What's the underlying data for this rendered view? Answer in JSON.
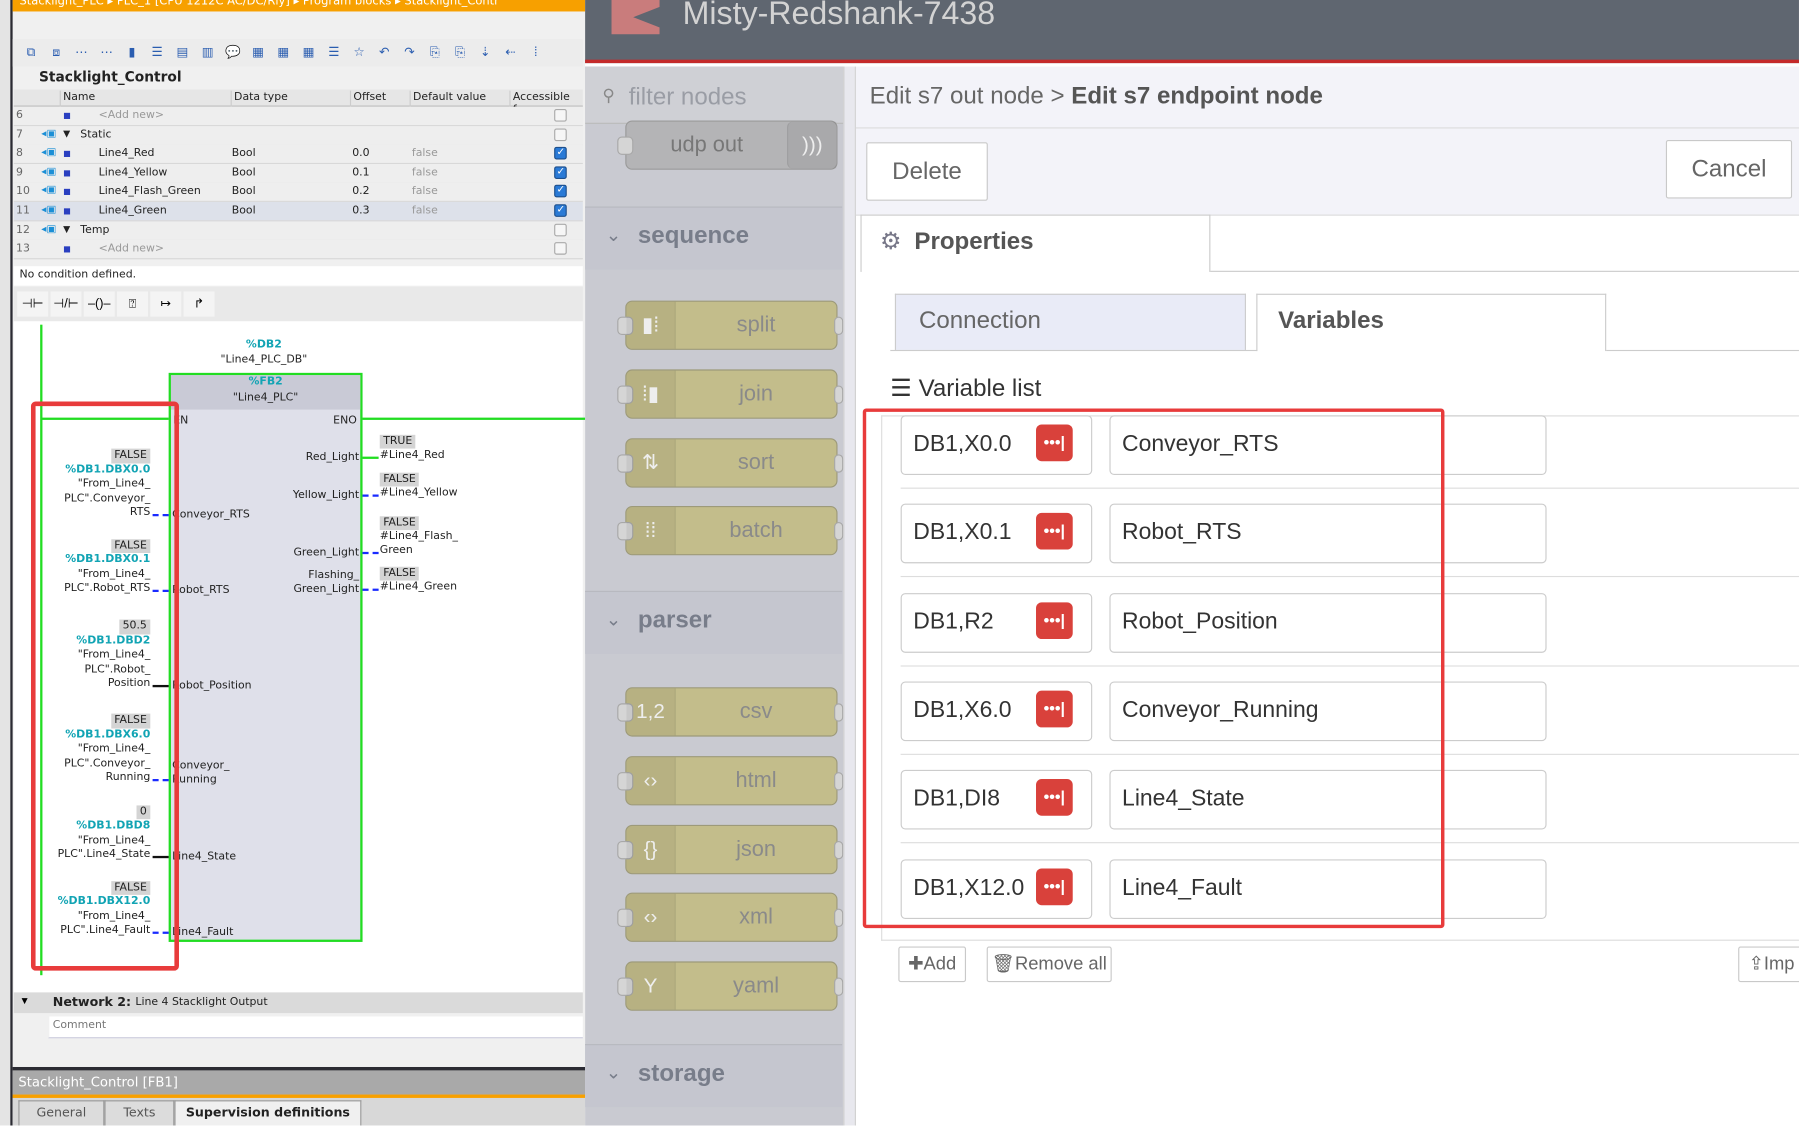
{
  "tia": {
    "breadcrumb": [
      "Stacklight_PLC",
      "PLC_1 [CPU 1212C AC/DC/Rly]",
      "Program blocks",
      "Stacklight_Contr"
    ],
    "block_title": "Stacklight_Control",
    "columns": [
      "Name",
      "Data type",
      "Offset",
      "Default value",
      "Accessible f..."
    ],
    "rows": [
      {
        "num": "6",
        "name": "<Add new>",
        "type": "",
        "offset": "",
        "default": "",
        "accessible": false,
        "kind": "add"
      },
      {
        "num": "7",
        "name": "Static",
        "type": "",
        "offset": "",
        "default": "",
        "accessible": false,
        "kind": "section"
      },
      {
        "num": "8",
        "name": "Line4_Red",
        "type": "Bool",
        "offset": "0.0",
        "default": "false",
        "accessible": true,
        "kind": "var"
      },
      {
        "num": "9",
        "name": "Line4_Yellow",
        "type": "Bool",
        "offset": "0.1",
        "default": "false",
        "accessible": true,
        "kind": "var"
      },
      {
        "num": "10",
        "name": "Line4_Flash_Green",
        "type": "Bool",
        "offset": "0.2",
        "default": "false",
        "accessible": true,
        "kind": "var"
      },
      {
        "num": "11",
        "name": "Line4_Green",
        "type": "Bool",
        "offset": "0.3",
        "default": "false",
        "accessible": true,
        "kind": "var"
      },
      {
        "num": "12",
        "name": "Temp",
        "type": "",
        "offset": "",
        "default": "",
        "accessible": false,
        "kind": "section"
      },
      {
        "num": "13",
        "name": "<Add new>",
        "type": "",
        "offset": "",
        "default": "",
        "accessible": false,
        "kind": "add"
      }
    ],
    "condition": "No condition defined.",
    "ladder": {
      "db_addr": "%DB2",
      "db_name": "\"Line4_PLC_DB\"",
      "fb_addr": "%FB2",
      "fb_name": "\"Line4_PLC\"",
      "en": "EN",
      "eno": "ENO",
      "inputs": [
        {
          "value": "FALSE",
          "addr": "%DB1.DBX0.0",
          "lines": [
            "\"From_Line4_",
            "PLC\".Conveyor_",
            "RTS"
          ],
          "pin": [
            "Conveyor_RTS"
          ],
          "wire": "bool"
        },
        {
          "value": "FALSE",
          "addr": "%DB1.DBX0.1",
          "lines": [
            "\"From_Line4_",
            "PLC\".Robot_RTS"
          ],
          "pin": [
            "Robot_RTS"
          ],
          "wire": "bool"
        },
        {
          "value": "50.5",
          "addr": "%DB1.DBD2",
          "lines": [
            "\"From_Line4_",
            "PLC\".Robot_",
            "Position"
          ],
          "pin": [
            "Robot_Position"
          ],
          "wire": "value"
        },
        {
          "value": "FALSE",
          "addr": "%DB1.DBX6.0",
          "lines": [
            "\"From_Line4_",
            "PLC\".Conveyor_",
            "Running"
          ],
          "pin": [
            "Conveyor_",
            "Running"
          ],
          "wire": "bool"
        },
        {
          "value": "0",
          "addr": "%DB1.DBD8",
          "lines": [
            "\"From_Line4_",
            "PLC\".Line4_State"
          ],
          "pin": [
            "Line4_State"
          ],
          "wire": "value"
        },
        {
          "value": "FALSE",
          "addr": "%DB1.DBX12.0",
          "lines": [
            "\"From_Line4_",
            "PLC\".Line4_Fault"
          ],
          "pin": [
            "Line4_Fault"
          ],
          "wire": "bool"
        }
      ],
      "outputs": [
        {
          "pin": [
            "Red_Light"
          ],
          "value": "TRUE",
          "target": [
            "#Line4_Red"
          ],
          "active": true
        },
        {
          "pin": [
            "Yellow_Light"
          ],
          "value": "FALSE",
          "target": [
            "#Line4_Yellow"
          ],
          "active": false
        },
        {
          "pin": [
            "Green_Light"
          ],
          "value": "FALSE",
          "target": [
            "#Line4_Flash_",
            "Green"
          ],
          "active": false
        },
        {
          "pin": [
            "Flashing_",
            "Green_Light"
          ],
          "value": "FALSE",
          "target": [
            "#Line4_Green"
          ],
          "active": false
        }
      ]
    },
    "network2": {
      "label": "Network 2:",
      "title": "Line 4 Stacklight Output",
      "comment": "Comment"
    },
    "inspector_title": "Stacklight_Control [FB1]",
    "inspector_tabs": [
      "General",
      "Texts",
      "Supervision definitions"
    ]
  },
  "nodered": {
    "title": "Misty-Redshank-7438",
    "filter_placeholder": "filter nodes",
    "palette": [
      {
        "label": "udp out",
        "kind": "node",
        "icon": "wifi-icon"
      },
      {
        "label": "sequence",
        "kind": "category"
      },
      {
        "label": "split",
        "kind": "node",
        "icon": "split-icon"
      },
      {
        "label": "join",
        "kind": "node",
        "icon": "join-icon"
      },
      {
        "label": "sort",
        "kind": "node",
        "icon": "sort-icon"
      },
      {
        "label": "batch",
        "kind": "node",
        "icon": "batch-icon"
      },
      {
        "label": "parser",
        "kind": "category"
      },
      {
        "label": "csv",
        "kind": "node",
        "icon": "csv-icon"
      },
      {
        "label": "html",
        "kind": "node",
        "icon": "code-icon"
      },
      {
        "label": "json",
        "kind": "node",
        "icon": "braces-icon"
      },
      {
        "label": "xml",
        "kind": "node",
        "icon": "code-icon"
      },
      {
        "label": "yaml",
        "kind": "node",
        "icon": "yaml-icon"
      },
      {
        "label": "storage",
        "kind": "category"
      }
    ],
    "editor": {
      "breadcrumb_parent": "Edit s7 out node",
      "breadcrumb_sep": ">",
      "breadcrumb_current": "Edit s7 endpoint node",
      "delete_label": "Delete",
      "cancel_label": "Cancel",
      "properties_tab": "Properties",
      "subtabs": [
        "Connection",
        "Variables"
      ],
      "active_subtab": "Variables",
      "variable_list_label": "Variable list",
      "variables": [
        {
          "address": "DB1,X0.0",
          "name": "Conveyor_RTS"
        },
        {
          "address": "DB1,X0.1",
          "name": "Robot_RTS"
        },
        {
          "address": "DB1,R2",
          "name": "Robot_Position"
        },
        {
          "address": "DB1,X6.0",
          "name": "Conveyor_Running"
        },
        {
          "address": "DB1,DI8",
          "name": "Line4_State"
        },
        {
          "address": "DB1,X12.0",
          "name": "Line4_Fault"
        }
      ],
      "add_label": "Add",
      "remove_all_label": "Remove all",
      "import_label": "Imp"
    }
  },
  "colors": {
    "tia_orange": "#f7a000",
    "plc_green": "#22dd22",
    "highlight_red": "#e83b3b",
    "nodered_header": "#5f6670",
    "nodered_red": "#d9413b",
    "node_olive": "#c3bd8b"
  }
}
